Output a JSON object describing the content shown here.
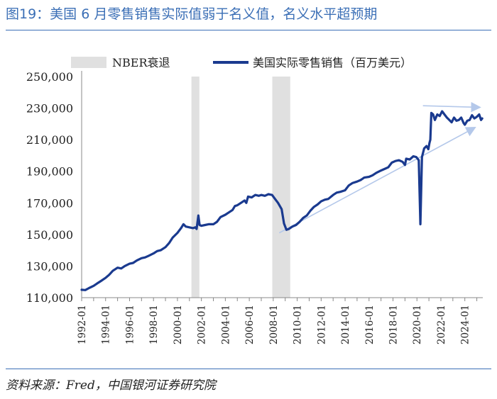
{
  "title": "图19：美国 6 月零售销售实际值弱于名义值，名义水平超预期",
  "source": "资料来源：Fred，中国银河证券研究院",
  "colors": {
    "line": "#1a3a8f",
    "band": "#e0e0e0",
    "arrow": "#b4c8ea",
    "title": "#3b6fb6"
  },
  "chart_data": {
    "type": "line",
    "title": "",
    "xlabel": "",
    "ylabel": "",
    "ylim": [
      110000,
      250000
    ],
    "yticks": [
      "250,000",
      "230,000",
      "210,000",
      "190,000",
      "170,000",
      "150,000",
      "130,000",
      "110,000"
    ],
    "ytick_values": [
      250000,
      230000,
      210000,
      190000,
      170000,
      150000,
      130000,
      110000
    ],
    "xlim": [
      1992.0,
      2025.5
    ],
    "xticks": [
      "1992-01",
      "1994-01",
      "1996-01",
      "1998-01",
      "2000-01",
      "2002-01",
      "2004-01",
      "2006-01",
      "2008-01",
      "2010-01",
      "2012-01",
      "2014-01",
      "2016-01",
      "2018-01",
      "2020-01",
      "2022-01",
      "2024-01"
    ],
    "xtick_values": [
      1992,
      1994,
      1996,
      1998,
      2000,
      2002,
      2004,
      2006,
      2008,
      2010,
      2012,
      2014,
      2016,
      2018,
      2020,
      2022,
      2024
    ],
    "minor_x_step": 1,
    "legend": {
      "position": "top",
      "band_label": "NBER衰退",
      "series_label": "美国实际零售销售（百万美元）"
    },
    "recessions": [
      [
        2001.17,
        2001.83
      ],
      [
        2007.92,
        2009.42
      ]
    ],
    "series": [
      {
        "name": "美国实际零售销售（百万美元）",
        "points": [
          [
            1992.0,
            115000
          ],
          [
            1992.3,
            114800
          ],
          [
            1992.6,
            116000
          ],
          [
            1993.0,
            117500
          ],
          [
            1993.3,
            119000
          ],
          [
            1993.6,
            120500
          ],
          [
            1994.0,
            122500
          ],
          [
            1994.3,
            124500
          ],
          [
            1994.6,
            127000
          ],
          [
            1994.8,
            128000
          ],
          [
            1995.0,
            129000
          ],
          [
            1995.3,
            128500
          ],
          [
            1995.6,
            130000
          ],
          [
            1996.0,
            131500
          ],
          [
            1996.3,
            132000
          ],
          [
            1996.6,
            133500
          ],
          [
            1997.0,
            135000
          ],
          [
            1997.3,
            135500
          ],
          [
            1997.6,
            136500
          ],
          [
            1998.0,
            138000
          ],
          [
            1998.3,
            139500
          ],
          [
            1998.6,
            140000
          ],
          [
            1999.0,
            142000
          ],
          [
            1999.3,
            144500
          ],
          [
            1999.6,
            148000
          ],
          [
            2000.0,
            151000
          ],
          [
            2000.3,
            154000
          ],
          [
            2000.5,
            156500
          ],
          [
            2000.7,
            155000
          ],
          [
            2001.0,
            154500
          ],
          [
            2001.3,
            154000
          ],
          [
            2001.5,
            154500
          ],
          [
            2001.6,
            153500
          ],
          [
            2001.75,
            162000
          ],
          [
            2001.85,
            156000
          ],
          [
            2002.0,
            155500
          ],
          [
            2002.3,
            156000
          ],
          [
            2002.6,
            156500
          ],
          [
            2003.0,
            156500
          ],
          [
            2003.3,
            158000
          ],
          [
            2003.6,
            161000
          ],
          [
            2004.0,
            162500
          ],
          [
            2004.3,
            164000
          ],
          [
            2004.6,
            165500
          ],
          [
            2004.8,
            168000
          ],
          [
            2005.0,
            168500
          ],
          [
            2005.3,
            170000
          ],
          [
            2005.6,
            171500
          ],
          [
            2005.75,
            170000
          ],
          [
            2005.9,
            174000
          ],
          [
            2006.2,
            173500
          ],
          [
            2006.5,
            175000
          ],
          [
            2006.8,
            174500
          ],
          [
            2007.0,
            175000
          ],
          [
            2007.3,
            174500
          ],
          [
            2007.6,
            175500
          ],
          [
            2007.9,
            175000
          ],
          [
            2008.1,
            173000
          ],
          [
            2008.4,
            170000
          ],
          [
            2008.7,
            166000
          ],
          [
            2008.9,
            157000
          ],
          [
            2009.1,
            153000
          ],
          [
            2009.3,
            153500
          ],
          [
            2009.6,
            155000
          ],
          [
            2009.9,
            156000
          ],
          [
            2010.2,
            158000
          ],
          [
            2010.5,
            160500
          ],
          [
            2010.8,
            162000
          ],
          [
            2011.1,
            165000
          ],
          [
            2011.4,
            167500
          ],
          [
            2011.7,
            169000
          ],
          [
            2012.0,
            171000
          ],
          [
            2012.3,
            172000
          ],
          [
            2012.6,
            172500
          ],
          [
            2013.0,
            175000
          ],
          [
            2013.3,
            176500
          ],
          [
            2013.6,
            177000
          ],
          [
            2014.0,
            178000
          ],
          [
            2014.3,
            181000
          ],
          [
            2014.6,
            182500
          ],
          [
            2015.0,
            183500
          ],
          [
            2015.3,
            184500
          ],
          [
            2015.6,
            186000
          ],
          [
            2016.0,
            186500
          ],
          [
            2016.3,
            187500
          ],
          [
            2016.6,
            189000
          ],
          [
            2017.0,
            190500
          ],
          [
            2017.3,
            191500
          ],
          [
            2017.6,
            192500
          ],
          [
            2017.9,
            195500
          ],
          [
            2018.2,
            196500
          ],
          [
            2018.5,
            197000
          ],
          [
            2018.8,
            196000
          ],
          [
            2019.0,
            194000
          ],
          [
            2019.1,
            198000
          ],
          [
            2019.4,
            197500
          ],
          [
            2019.7,
            199500
          ],
          [
            2019.95,
            199000
          ],
          [
            2020.15,
            197000
          ],
          [
            2020.29,
            156500
          ],
          [
            2020.42,
            199000
          ],
          [
            2020.6,
            204500
          ],
          [
            2020.8,
            206000
          ],
          [
            2020.95,
            204000
          ],
          [
            2021.05,
            208000
          ],
          [
            2021.12,
            210000
          ],
          [
            2021.2,
            227000
          ],
          [
            2021.35,
            226000
          ],
          [
            2021.5,
            222500
          ],
          [
            2021.7,
            226000
          ],
          [
            2021.9,
            225000
          ],
          [
            2022.1,
            228000
          ],
          [
            2022.3,
            226000
          ],
          [
            2022.5,
            224000
          ],
          [
            2022.7,
            222500
          ],
          [
            2022.9,
            221000
          ],
          [
            2023.1,
            224000
          ],
          [
            2023.3,
            222000
          ],
          [
            2023.5,
            222500
          ],
          [
            2023.7,
            224000
          ],
          [
            2023.9,
            220500
          ],
          [
            2024.0,
            219500
          ],
          [
            2024.2,
            222000
          ],
          [
            2024.4,
            222500
          ],
          [
            2024.6,
            225500
          ],
          [
            2024.8,
            223500
          ],
          [
            2025.0,
            224500
          ],
          [
            2025.2,
            226000
          ],
          [
            2025.35,
            222500
          ],
          [
            2025.45,
            223500
          ]
        ]
      }
    ],
    "annotations": [
      {
        "type": "arrow",
        "from": [
          2020.5,
          231500
        ],
        "to": [
          2025.2,
          230500
        ]
      },
      {
        "type": "arrow",
        "from": [
          2008.5,
          151000
        ],
        "to": [
          2024.8,
          217500
        ]
      }
    ]
  }
}
